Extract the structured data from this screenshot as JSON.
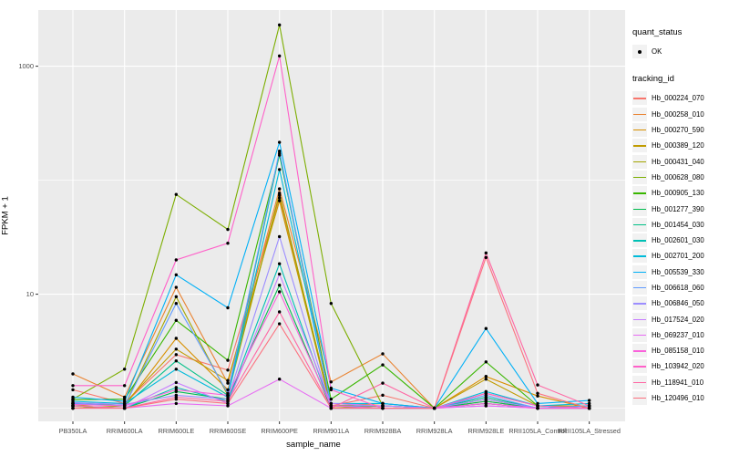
{
  "chart_data": {
    "type": "line",
    "title": "",
    "xlabel": "sample_name",
    "ylabel": "FPKM + 1",
    "y_scale": "log10",
    "y_major_ticks": [
      10,
      1000
    ],
    "y_minor_gridlines": [
      1,
      100
    ],
    "ylim_fpkm_plus_1": [
      1,
      2400
    ],
    "grid": true,
    "legend_position": "right",
    "categories": [
      "PB350LA",
      "RRIM600LA",
      "RRIM600LE",
      "RRIM600SE",
      "RRIM600PE",
      "RRIM901LA",
      "RRIM928BA",
      "RRIM928LA",
      "RRIM928LE",
      "RRII105LA_Control",
      "RRII105LA_Stressed"
    ],
    "series": [
      {
        "name": "Hb_000224_070",
        "color": "#F8766D",
        "values": [
          1.45,
          1.1,
          2.95,
          2.16,
          70,
          1.05,
          1.3,
          1.0,
          1.15,
          1.0,
          1.0
        ]
      },
      {
        "name": "Hb_000258_010",
        "color": "#EA8331",
        "values": [
          2.0,
          1.25,
          11.5,
          1.66,
          84,
          1.7,
          3.0,
          1.0,
          1.35,
          1.05,
          1.0
        ]
      },
      {
        "name": "Hb_000270_590",
        "color": "#D89000",
        "values": [
          1.1,
          1.05,
          4.1,
          1.45,
          74,
          1.05,
          1.1,
          1.0,
          1.9,
          1.28,
          1.0
        ]
      },
      {
        "name": "Hb_000389_120",
        "color": "#C09B00",
        "values": [
          1.05,
          1.1,
          3.3,
          1.75,
          66,
          1.0,
          1.05,
          1.0,
          1.8,
          1.05,
          1.05
        ]
      },
      {
        "name": "Hb_000431_040",
        "color": "#A3A500",
        "values": [
          1.0,
          1.05,
          9.5,
          1.3,
          77,
          1.0,
          1.05,
          1.0,
          1.1,
          1.0,
          1.0
        ]
      },
      {
        "name": "Hb_000628_080",
        "color": "#7CAE00",
        "values": [
          1.2,
          2.2,
          75,
          37,
          2300,
          8.3,
          1.05,
          1.0,
          1.2,
          1.0,
          1.0
        ]
      },
      {
        "name": "Hb_000905_130",
        "color": "#39B600",
        "values": [
          1.19,
          1.2,
          5.9,
          2.63,
          166,
          1.2,
          2.4,
          1.0,
          2.55,
          1.05,
          1.0
        ]
      },
      {
        "name": "Hb_001277_390",
        "color": "#00BB4E",
        "values": [
          1.05,
          1.0,
          1.4,
          1.2,
          12,
          1.0,
          1.0,
          1.0,
          1.15,
          1.0,
          1.0
        ]
      },
      {
        "name": "Hb_001454_030",
        "color": "#00C087",
        "values": [
          1.1,
          1.05,
          2.6,
          1.3,
          172,
          1.05,
          1.0,
          1.0,
          1.25,
          1.0,
          1.05
        ]
      },
      {
        "name": "Hb_002601_030",
        "color": "#00C0B4",
        "values": [
          1.05,
          1.0,
          1.52,
          1.15,
          18.5,
          1.0,
          1.0,
          1.0,
          1.1,
          1.0,
          1.0
        ]
      },
      {
        "name": "Hb_002701_200",
        "color": "#00BBDA",
        "values": [
          1.15,
          1.1,
          2.2,
          1.25,
          124,
          1.1,
          1.1,
          1.0,
          1.4,
          1.05,
          1.1
        ]
      },
      {
        "name": "Hb_005539_330",
        "color": "#00B0F6",
        "values": [
          1.25,
          1.15,
          14.8,
          7.6,
          215,
          1.5,
          1.1,
          1.0,
          5.0,
          1.1,
          1.17
        ]
      },
      {
        "name": "Hb_006618_060",
        "color": "#619CFF",
        "values": [
          1.1,
          1.05,
          8.3,
          1.35,
          180,
          1.05,
          1.05,
          1.0,
          1.3,
          1.0,
          1.05
        ]
      },
      {
        "name": "Hb_006846_050",
        "color": "#9C8DFF",
        "values": [
          1.12,
          1.08,
          1.3,
          1.2,
          32,
          1.0,
          1.0,
          1.0,
          1.2,
          1.0,
          1.0
        ]
      },
      {
        "name": "Hb_017524_020",
        "color": "#C77CFF",
        "values": [
          1.05,
          1.0,
          1.68,
          1.1,
          15,
          1.1,
          1.05,
          1.0,
          1.05,
          1.0,
          1.0
        ]
      },
      {
        "name": "Hb_069237_010",
        "color": "#E76BF3",
        "values": [
          1.0,
          1.0,
          1.1,
          1.05,
          1.8,
          1.0,
          1.0,
          1.0,
          1.05,
          1.0,
          1.0
        ]
      },
      {
        "name": "Hb_085158_010",
        "color": "#FA62DB",
        "values": [
          1.08,
          1.05,
          1.45,
          1.3,
          10.5,
          1.05,
          1.0,
          1.0,
          1.1,
          1.0,
          1.0
        ]
      },
      {
        "name": "Hb_103942_020",
        "color": "#FF61C9",
        "values": [
          1.58,
          1.58,
          20,
          28,
          1230,
          1.45,
          1.0,
          1.0,
          1.35,
          1.05,
          1.0
        ]
      },
      {
        "name": "Hb_118941_010",
        "color": "#FF67A4",
        "values": [
          1.05,
          1.0,
          1.25,
          1.15,
          7.0,
          1.0,
          1.66,
          1.0,
          23,
          1.6,
          1.05
        ]
      },
      {
        "name": "Hb_120496_010",
        "color": "#FC717F",
        "values": [
          1.0,
          1.0,
          1.2,
          1.1,
          5.5,
          1.0,
          1.0,
          1.0,
          21,
          1.35,
          1.0
        ]
      }
    ]
  },
  "legend": {
    "quant_status_title": "quant_status",
    "quant_status_ok_label": "OK",
    "tracking_id_title": "tracking_id"
  },
  "axes": {
    "x_title": "sample_name",
    "y_title": "FPKM + 1",
    "y_tick_labels": [
      "1000",
      "10"
    ]
  },
  "theme": {
    "panel_bg": "#EBEBEB",
    "grid_color": "#FFFFFF",
    "legend_key_bg": "#F2F2F2",
    "tick_text_color": "#4D4D4D",
    "point_color": "#000000"
  }
}
